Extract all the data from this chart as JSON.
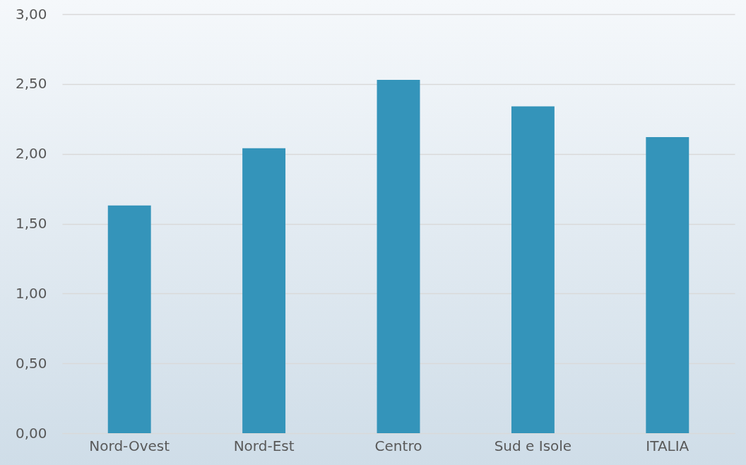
{
  "chart_data": {
    "type": "bar",
    "categories": [
      "Nord-Ovest",
      "Nord-Est",
      "Centro",
      "Sud e Isole",
      "ITALIA"
    ],
    "values": [
      1.63,
      2.04,
      2.53,
      2.34,
      2.12
    ],
    "color": "#3494ba",
    "ylim": [
      0,
      3
    ],
    "yticks": [
      {
        "value": 0,
        "label": "0,00"
      },
      {
        "value": 0.5,
        "label": "0,50"
      },
      {
        "value": 1,
        "label": "1,00"
      },
      {
        "value": 1.5,
        "label": "1,50"
      },
      {
        "value": 2,
        "label": "2,00"
      },
      {
        "value": 2.5,
        "label": "2,50"
      },
      {
        "value": 3,
        "label": "3,00"
      }
    ],
    "grid": "y"
  }
}
